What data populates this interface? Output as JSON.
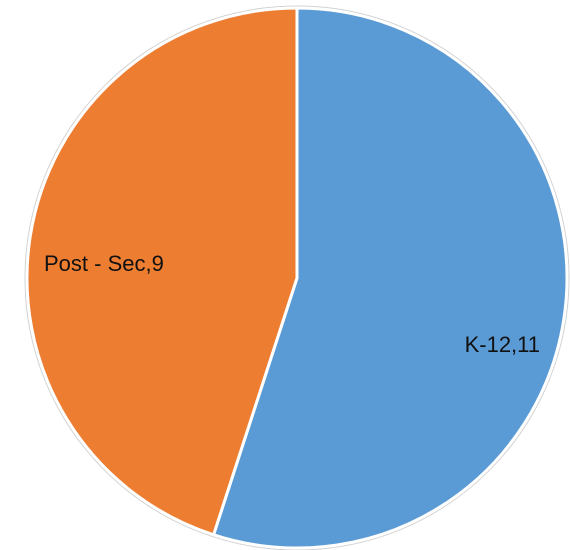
{
  "chart_data": {
    "type": "pie",
    "title": "",
    "slices": [
      {
        "label": "K-12",
        "value": 11,
        "display": "K-12,11",
        "color": "#5b9bd5"
      },
      {
        "label": "Post - Sec",
        "value": 9,
        "display": "Post - Sec,9",
        "color": "#ed7d31"
      }
    ],
    "start_angle": "12 o'clock",
    "direction": "clockwise",
    "legend": "none",
    "data_labels": "inside"
  }
}
